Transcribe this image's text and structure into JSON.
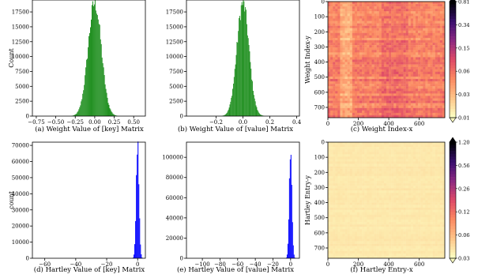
{
  "chart_data": [
    {
      "id": "a",
      "type": "bar",
      "caption": "(a) Weight Value of [key] Matrix",
      "ylabel": "Count",
      "xlabel": "",
      "color": "#1f8f1f",
      "xlim": [
        -0.8,
        0.65
      ],
      "ylim": [
        0,
        19500
      ],
      "xticks": [
        -0.75,
        -0.5,
        -0.25,
        0.0,
        0.25,
        0.5
      ],
      "xtick_labels": [
        "−0.75",
        "−0.50",
        "−0.25",
        "0.00",
        "0.25",
        "0.50"
      ],
      "yticks": [
        0,
        2500,
        5000,
        7500,
        10000,
        12500,
        15000,
        17500
      ],
      "ytick_labels": [
        "0",
        "2500",
        "5000",
        "7500",
        "10000",
        "12500",
        "15000",
        "17500"
      ],
      "distribution": {
        "shape": "gaussian",
        "center": 0.0,
        "width": 0.085,
        "peak": 19000,
        "bins": 60
      }
    },
    {
      "id": "b",
      "type": "bar",
      "caption": "(b) Weight Value of [value] Matrix",
      "ylabel": "",
      "xlabel": "",
      "color": "#1f8f1f",
      "xlim": [
        -0.42,
        0.42
      ],
      "ylim": [
        0,
        19500
      ],
      "xticks": [
        -0.2,
        0.0,
        0.2,
        0.4
      ],
      "xtick_labels": [
        "−0.2",
        "0.0",
        "0.2",
        "0.4"
      ],
      "yticks": [
        0,
        2500,
        5000,
        7500,
        10000,
        12500,
        15000,
        17500
      ],
      "ytick_labels": [
        "0",
        "2500",
        "5000",
        "7500",
        "10000",
        "12500",
        "15000",
        "17500"
      ],
      "distribution": {
        "shape": "gaussian",
        "center": 0.0,
        "width": 0.045,
        "peak": 19000,
        "bins": 60
      }
    },
    {
      "id": "c",
      "type": "heatmap",
      "caption": "(c) Weight Index-x",
      "ylabel": "Weight Index-y",
      "xlabel": "",
      "colormap": [
        "#fcfdbf",
        "#fec287",
        "#fb8861",
        "#de4968",
        "#8c2981",
        "#3b0f70",
        "#000004"
      ],
      "field_level": 0.35,
      "field_variation": 0.12,
      "xticks": [
        0,
        200,
        400,
        600
      ],
      "xtick_labels": [
        "0",
        "200",
        "400",
        "600"
      ],
      "yticks": [
        0,
        100,
        200,
        300,
        400,
        500,
        600,
        700
      ],
      "ytick_labels": [
        "0",
        "100",
        "200",
        "300",
        "400",
        "500",
        "600",
        "700"
      ],
      "size": 768,
      "colorbar_ticks": [
        "0.81",
        "0.34",
        "0.15",
        "0.06",
        "0.03",
        "0.01"
      ]
    },
    {
      "id": "d",
      "type": "bar",
      "caption": "(d) Hartley Value of [key] Matrix",
      "ylabel": "count",
      "xlabel": "",
      "color": "#0000ff",
      "xlim": [
        -68,
        5
      ],
      "ylim": [
        0,
        72000
      ],
      "xticks": [
        -60,
        -40,
        -20,
        0
      ],
      "xtick_labels": [
        "−60",
        "−40",
        "−20",
        "0"
      ],
      "yticks": [
        0,
        10000,
        20000,
        30000,
        40000,
        50000,
        60000,
        70000
      ],
      "ytick_labels": [
        "0",
        "10000",
        "20000",
        "30000",
        "40000",
        "50000",
        "60000",
        "70000"
      ],
      "distribution": {
        "shape": "gaussian",
        "center": 0.0,
        "width": 0.9,
        "peak": 71000,
        "bins": 12
      }
    },
    {
      "id": "e",
      "type": "bar",
      "caption": "(e) Hartley Value of [value] Matrix",
      "ylabel": "",
      "xlabel": "",
      "color": "#0000ff",
      "xlim": [
        -118,
        10
      ],
      "ylim": [
        0,
        115000
      ],
      "xticks": [
        -100,
        -80,
        -60,
        -40,
        -20,
        0
      ],
      "xtick_labels": [
        "−100",
        "−80",
        "−60",
        "−40",
        "−20",
        "0"
      ],
      "yticks": [
        0,
        20000,
        40000,
        60000,
        80000,
        100000
      ],
      "ytick_labels": [
        "0",
        "20000",
        "40000",
        "60000",
        "80000",
        "100000"
      ],
      "distribution": {
        "shape": "gaussian",
        "center": 0.0,
        "width": 1.5,
        "peak": 110000,
        "bins": 12
      }
    },
    {
      "id": "f",
      "type": "heatmap",
      "caption": "(f) Hartley Entry-x",
      "ylabel": "Hartley Entry-y",
      "xlabel": "",
      "colormap": [
        "#fcfdbf",
        "#fec287",
        "#fb8861",
        "#de4968",
        "#8c2981",
        "#3b0f70",
        "#000004"
      ],
      "field_level": 0.06,
      "field_variation": 0.02,
      "xticks": [
        0,
        200,
        400,
        600
      ],
      "xtick_labels": [
        "0",
        "200",
        "400",
        "600"
      ],
      "yticks": [
        0,
        100,
        200,
        300,
        400,
        500,
        600,
        700
      ],
      "ytick_labels": [
        "0",
        "100",
        "200",
        "300",
        "400",
        "500",
        "600",
        "700"
      ],
      "size": 768,
      "colorbar_ticks": [
        "1.20",
        "0.56",
        "0.26",
        "0.12",
        "0.06",
        "0.03"
      ]
    }
  ]
}
